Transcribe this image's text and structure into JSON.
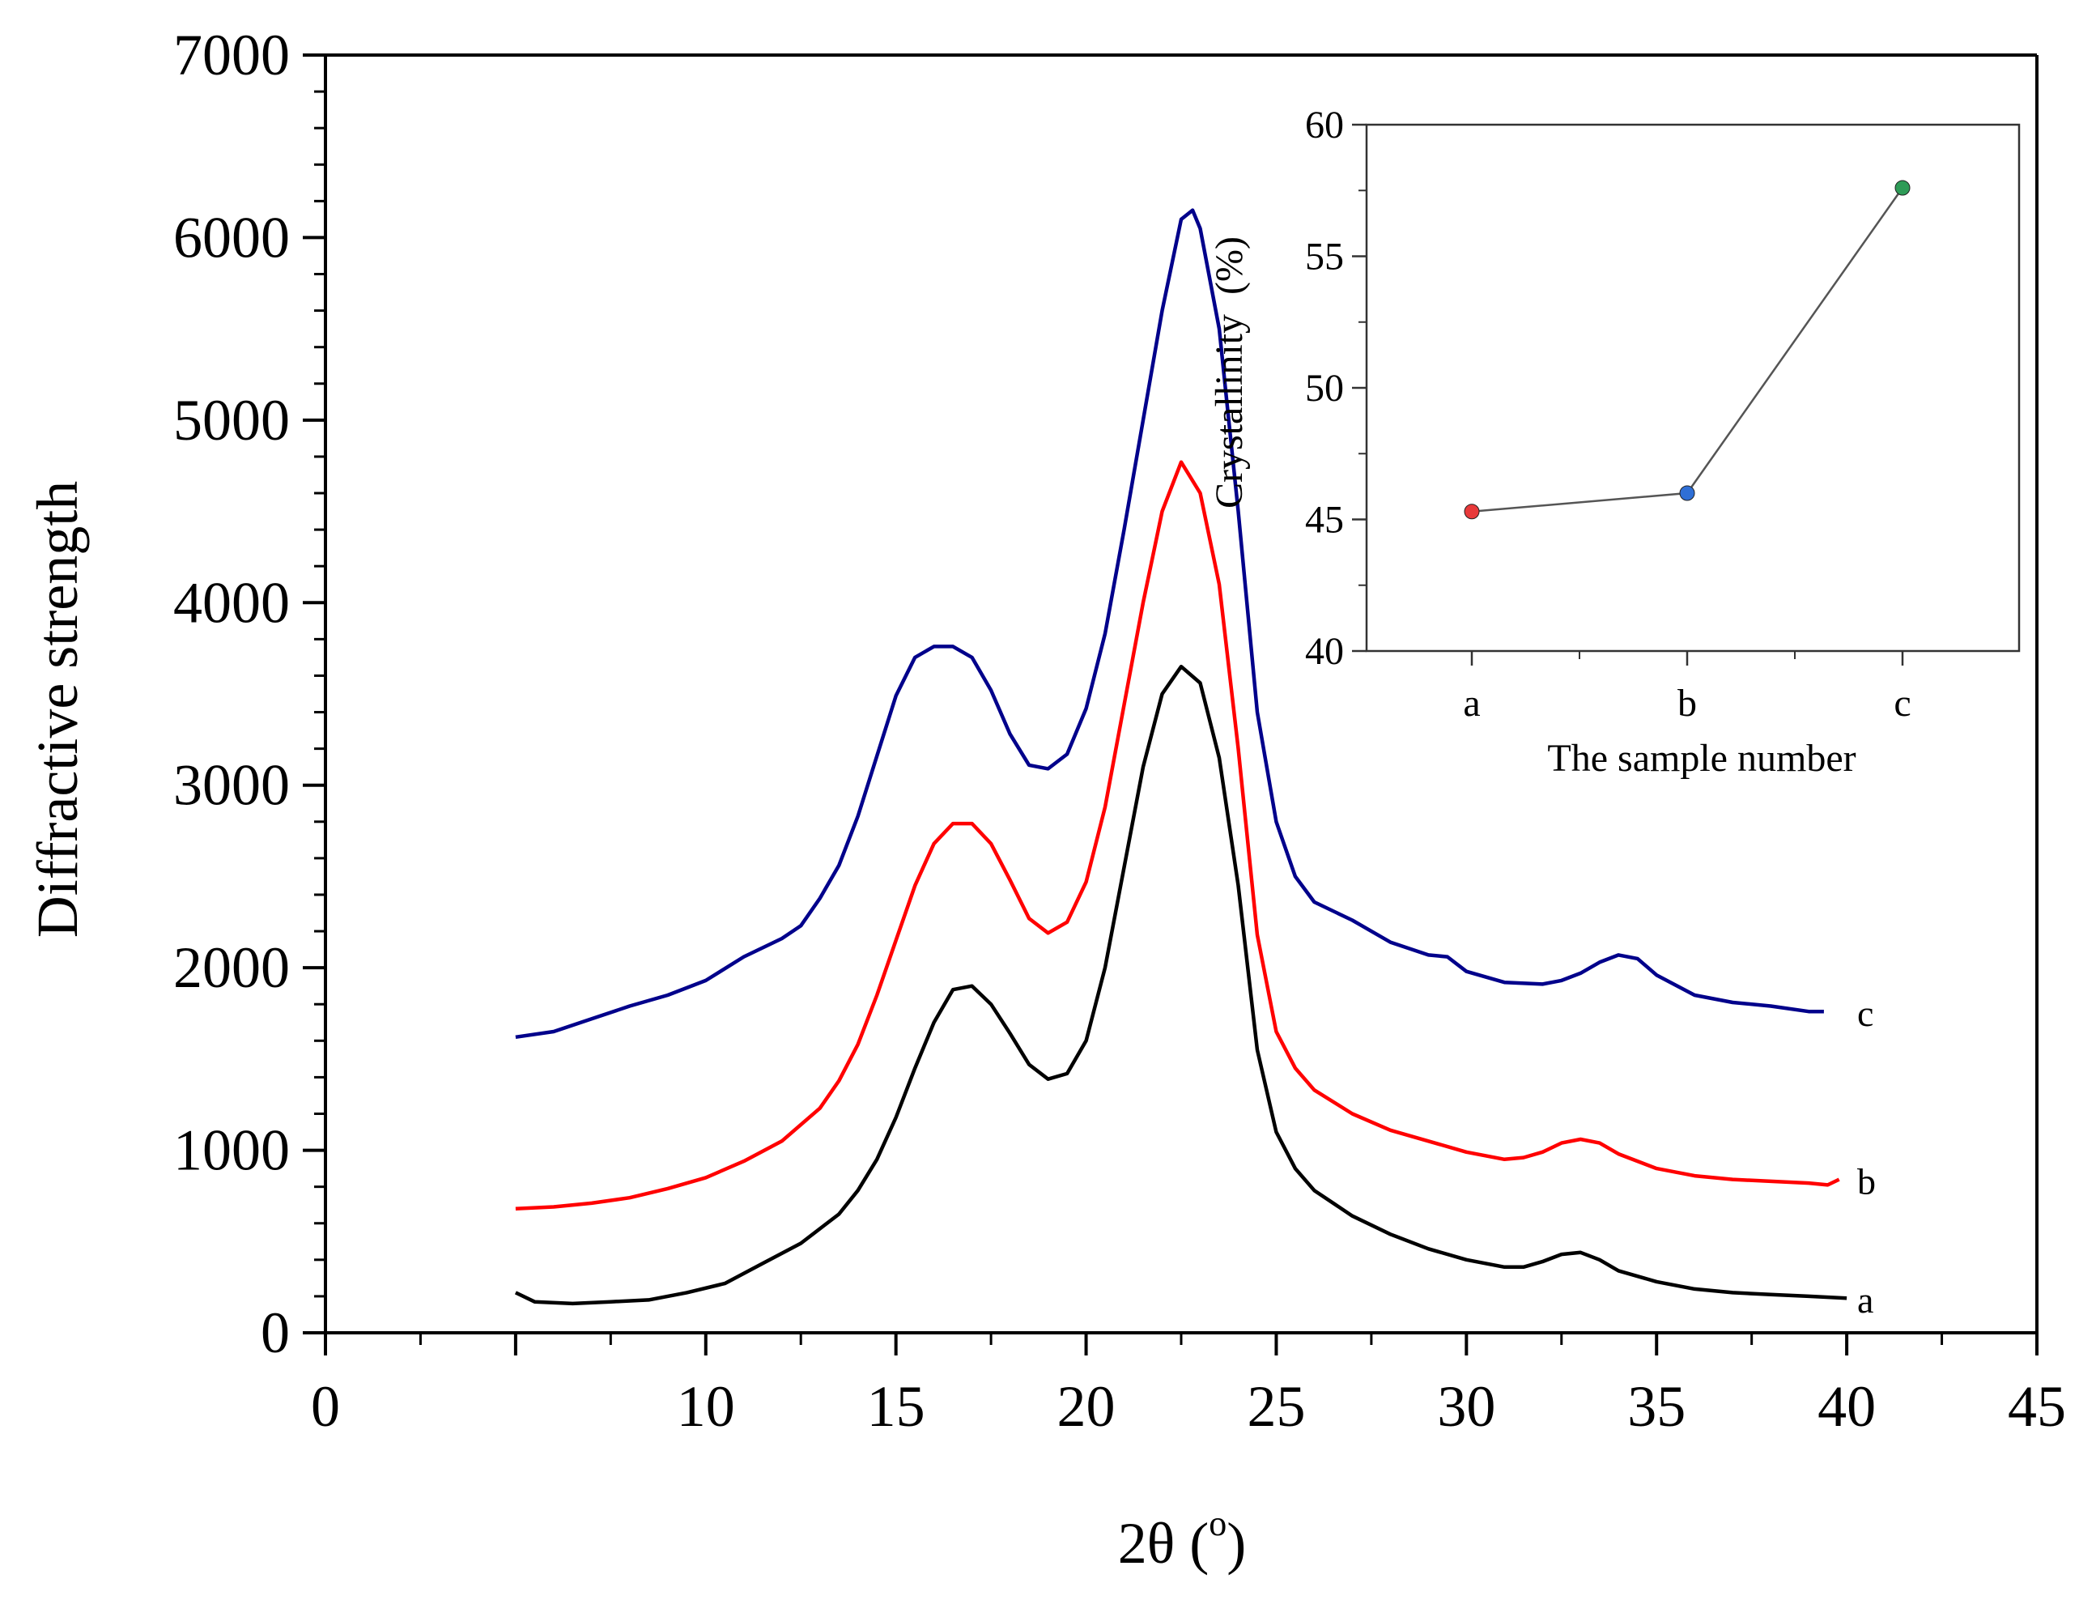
{
  "chart_data": [
    {
      "id": "main",
      "type": "line",
      "title": "",
      "xlabel": "2θ (°)",
      "xlabel_parts": [
        "2θ (",
        "o",
        ")"
      ],
      "ylabel": "Diffractive strength",
      "xlim": [
        0,
        45
      ],
      "ylim": [
        0,
        7000
      ],
      "xticks": [
        0,
        5,
        10,
        15,
        20,
        25,
        30,
        35,
        40,
        45
      ],
      "xtick_labels": [
        "0",
        "",
        "10",
        "15",
        "20",
        "25",
        "30",
        "35",
        "40",
        "45"
      ],
      "yticks": [
        0,
        1000,
        2000,
        3000,
        4000,
        5000,
        6000,
        7000
      ],
      "ytick_labels": [
        "0",
        "1000",
        "2000",
        "3000",
        "4000",
        "5000",
        "6000",
        "7000"
      ],
      "grid": false,
      "series": [
        {
          "name": "a",
          "label": "a",
          "color": "#000000",
          "points": [
            [
              5.0,
              220
            ],
            [
              5.5,
              170
            ],
            [
              6.5,
              160
            ],
            [
              7.5,
              170
            ],
            [
              8.5,
              180
            ],
            [
              9.5,
              220
            ],
            [
              10.5,
              270
            ],
            [
              11.5,
              380
            ],
            [
              12.5,
              490
            ],
            [
              13.5,
              650
            ],
            [
              14.0,
              780
            ],
            [
              14.5,
              950
            ],
            [
              15.0,
              1180
            ],
            [
              15.5,
              1450
            ],
            [
              16.0,
              1700
            ],
            [
              16.5,
              1880
            ],
            [
              17.0,
              1900
            ],
            [
              17.5,
              1800
            ],
            [
              18.0,
              1640
            ],
            [
              18.5,
              1470
            ],
            [
              19.0,
              1390
            ],
            [
              19.5,
              1420
            ],
            [
              20.0,
              1600
            ],
            [
              20.5,
              2000
            ],
            [
              21.0,
              2550
            ],
            [
              21.5,
              3100
            ],
            [
              22.0,
              3500
            ],
            [
              22.5,
              3650
            ],
            [
              23.0,
              3560
            ],
            [
              23.5,
              3150
            ],
            [
              24.0,
              2450
            ],
            [
              24.5,
              1550
            ],
            [
              25.0,
              1100
            ],
            [
              25.5,
              900
            ],
            [
              26.0,
              780
            ],
            [
              27.0,
              640
            ],
            [
              28.0,
              540
            ],
            [
              29.0,
              460
            ],
            [
              30.0,
              400
            ],
            [
              31.0,
              360
            ],
            [
              31.5,
              360
            ],
            [
              32.0,
              390
            ],
            [
              32.5,
              430
            ],
            [
              33.0,
              440
            ],
            [
              33.5,
              400
            ],
            [
              34.0,
              340
            ],
            [
              35.0,
              280
            ],
            [
              36.0,
              240
            ],
            [
              37.0,
              220
            ],
            [
              38.0,
              210
            ],
            [
              39.0,
              200
            ],
            [
              40.0,
              190
            ]
          ]
        },
        {
          "name": "b",
          "label": "b",
          "color": "#ff0000",
          "points": [
            [
              5.0,
              680
            ],
            [
              6.0,
              690
            ],
            [
              7.0,
              710
            ],
            [
              8.0,
              740
            ],
            [
              9.0,
              790
            ],
            [
              10.0,
              850
            ],
            [
              11.0,
              940
            ],
            [
              12.0,
              1050
            ],
            [
              13.0,
              1230
            ],
            [
              13.5,
              1380
            ],
            [
              14.0,
              1580
            ],
            [
              14.5,
              1850
            ],
            [
              15.0,
              2150
            ],
            [
              15.5,
              2450
            ],
            [
              16.0,
              2680
            ],
            [
              16.5,
              2790
            ],
            [
              17.0,
              2790
            ],
            [
              17.5,
              2680
            ],
            [
              18.0,
              2480
            ],
            [
              18.5,
              2270
            ],
            [
              19.0,
              2190
            ],
            [
              19.5,
              2250
            ],
            [
              20.0,
              2470
            ],
            [
              20.5,
              2880
            ],
            [
              21.0,
              3440
            ],
            [
              21.5,
              4000
            ],
            [
              22.0,
              4500
            ],
            [
              22.5,
              4770
            ],
            [
              23.0,
              4600
            ],
            [
              23.5,
              4100
            ],
            [
              24.0,
              3200
            ],
            [
              24.5,
              2180
            ],
            [
              25.0,
              1650
            ],
            [
              25.5,
              1450
            ],
            [
              26.0,
              1330
            ],
            [
              27.0,
              1200
            ],
            [
              28.0,
              1110
            ],
            [
              29.0,
              1050
            ],
            [
              30.0,
              990
            ],
            [
              31.0,
              950
            ],
            [
              31.5,
              960
            ],
            [
              32.0,
              990
            ],
            [
              32.5,
              1040
            ],
            [
              33.0,
              1060
            ],
            [
              33.5,
              1040
            ],
            [
              34.0,
              980
            ],
            [
              35.0,
              900
            ],
            [
              36.0,
              860
            ],
            [
              37.0,
              840
            ],
            [
              38.0,
              830
            ],
            [
              39.0,
              820
            ],
            [
              39.5,
              810
            ],
            [
              39.8,
              840
            ]
          ]
        },
        {
          "name": "c",
          "label": "c",
          "color": "#00008b",
          "points": [
            [
              5.0,
              1620
            ],
            [
              6.0,
              1650
            ],
            [
              7.0,
              1720
            ],
            [
              8.0,
              1790
            ],
            [
              9.0,
              1850
            ],
            [
              10.0,
              1930
            ],
            [
              11.0,
              2060
            ],
            [
              12.0,
              2160
            ],
            [
              12.5,
              2230
            ],
            [
              13.0,
              2380
            ],
            [
              13.5,
              2560
            ],
            [
              14.0,
              2830
            ],
            [
              14.5,
              3160
            ],
            [
              15.0,
              3490
            ],
            [
              15.5,
              3700
            ],
            [
              16.0,
              3760
            ],
            [
              16.5,
              3760
            ],
            [
              17.0,
              3700
            ],
            [
              17.5,
              3520
            ],
            [
              18.0,
              3280
            ],
            [
              18.5,
              3110
            ],
            [
              19.0,
              3090
            ],
            [
              19.5,
              3170
            ],
            [
              20.0,
              3420
            ],
            [
              20.5,
              3830
            ],
            [
              21.0,
              4400
            ],
            [
              21.5,
              5000
            ],
            [
              22.0,
              5600
            ],
            [
              22.5,
              6100
            ],
            [
              22.8,
              6150
            ],
            [
              23.0,
              6050
            ],
            [
              23.5,
              5500
            ],
            [
              24.0,
              4500
            ],
            [
              24.5,
              3400
            ],
            [
              25.0,
              2800
            ],
            [
              25.5,
              2500
            ],
            [
              26.0,
              2360
            ],
            [
              27.0,
              2260
            ],
            [
              28.0,
              2140
            ],
            [
              29.0,
              2070
            ],
            [
              29.5,
              2060
            ],
            [
              30.0,
              1980
            ],
            [
              31.0,
              1920
            ],
            [
              32.0,
              1910
            ],
            [
              32.5,
              1930
            ],
            [
              33.0,
              1970
            ],
            [
              33.5,
              2030
            ],
            [
              34.0,
              2070
            ],
            [
              34.5,
              2050
            ],
            [
              35.0,
              1960
            ],
            [
              36.0,
              1850
            ],
            [
              37.0,
              1810
            ],
            [
              38.0,
              1790
            ],
            [
              39.0,
              1760
            ],
            [
              39.4,
              1760
            ]
          ]
        }
      ]
    },
    {
      "id": "inset",
      "type": "line",
      "title": "",
      "xlabel": "The sample number",
      "ylabel": "Crystallinity  (%)",
      "categories": [
        "a",
        "b",
        "c"
      ],
      "values": [
        45.3,
        46.0,
        57.6
      ],
      "point_colors": [
        "#e8393a",
        "#2f6fd6",
        "#2e9b57"
      ],
      "line_color": "#555555",
      "ylim": [
        40,
        60
      ],
      "yticks": [
        40,
        45,
        50,
        55,
        60
      ],
      "ytick_labels": [
        "40",
        "45",
        "50",
        "55",
        "60"
      ],
      "grid": false
    }
  ]
}
